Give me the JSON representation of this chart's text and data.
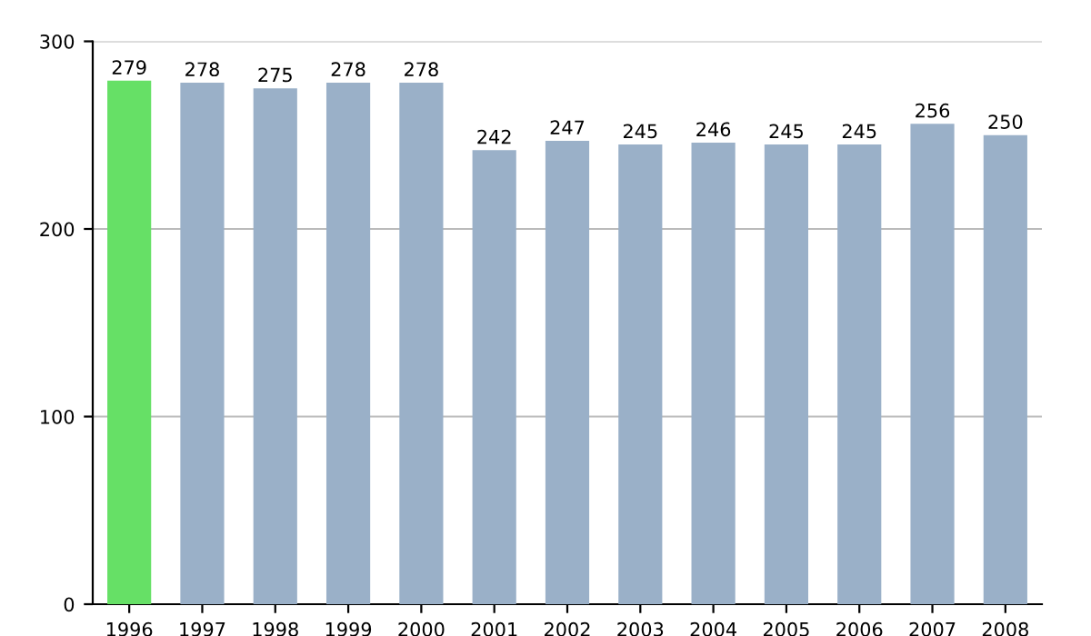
{
  "chart_data": {
    "type": "bar",
    "categories": [
      "1996",
      "1997",
      "1998",
      "1999",
      "2000",
      "2001",
      "2002",
      "2003",
      "2004",
      "2005",
      "2006",
      "2007",
      "2008"
    ],
    "values": [
      279,
      278,
      275,
      278,
      278,
      242,
      247,
      245,
      246,
      245,
      245,
      256,
      250
    ],
    "colors": [
      "#66e066",
      "#9ab0c8",
      "#9ab0c8",
      "#9ab0c8",
      "#9ab0c8",
      "#9ab0c8",
      "#9ab0c8",
      "#9ab0c8",
      "#9ab0c8",
      "#9ab0c8",
      "#9ab0c8",
      "#9ab0c8",
      "#9ab0c8"
    ],
    "ylim": [
      0,
      300
    ],
    "yticks": [
      0,
      100,
      200,
      300
    ],
    "grid": "y",
    "data_labels": true
  }
}
